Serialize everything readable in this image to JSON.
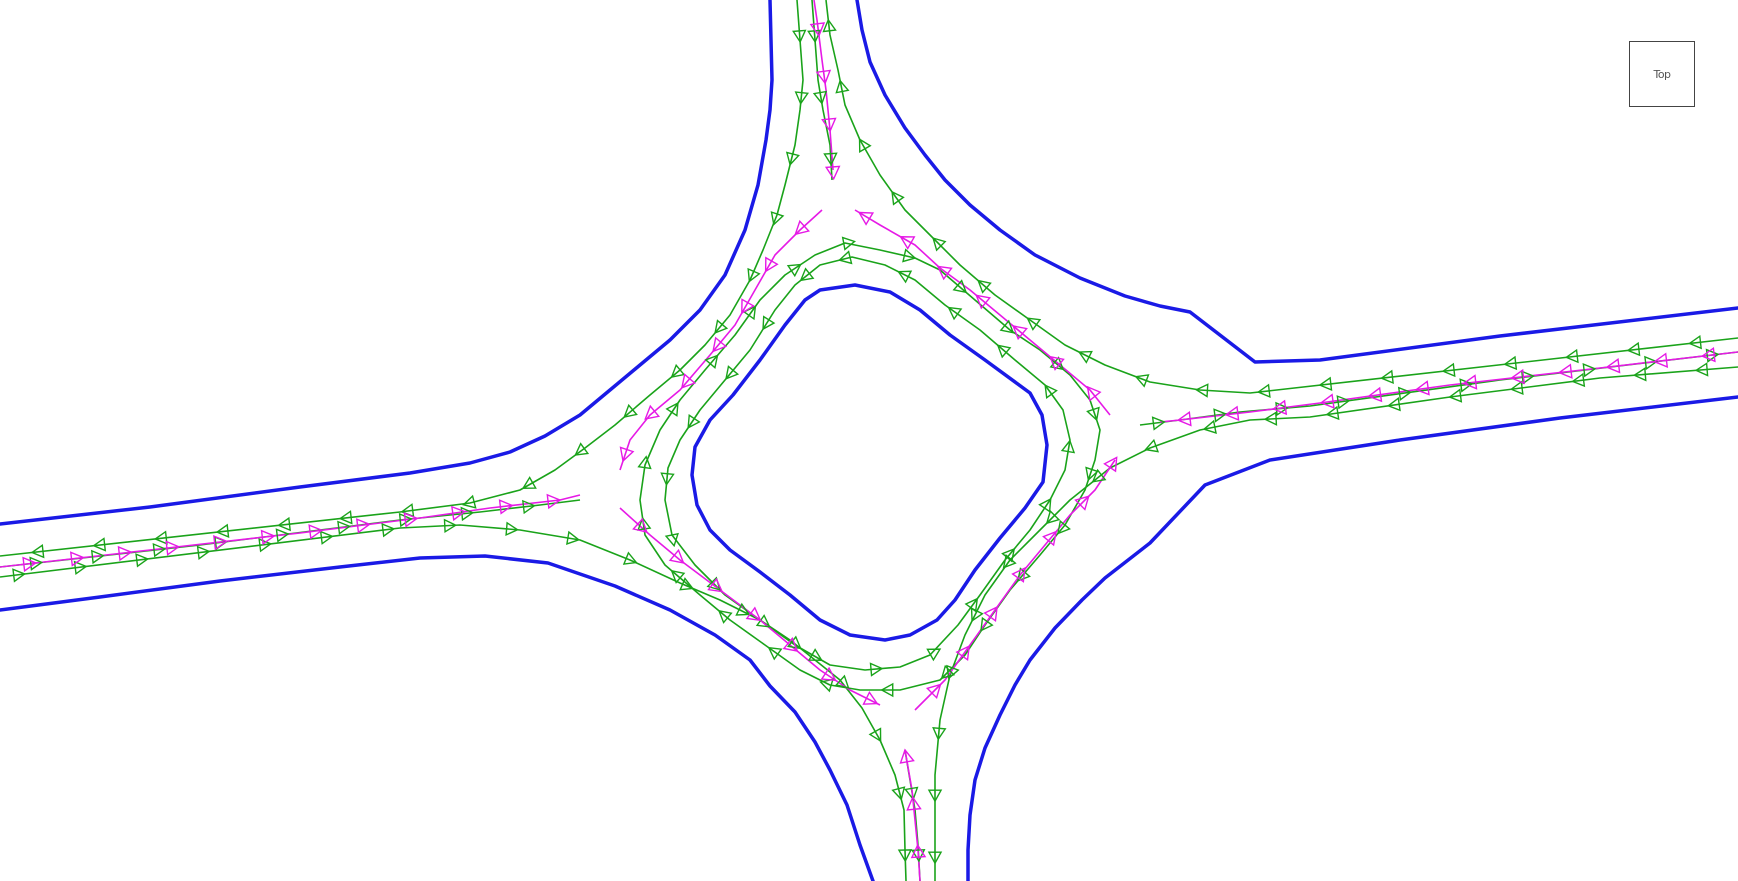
{
  "view_cube": {
    "label": "Top"
  },
  "colors": {
    "road_edge": "#1a1ae6",
    "lane_line": "#1aa31a",
    "connector_line": "#e61ae6",
    "background": "#ffffff"
  },
  "icons": {
    "direction_arrow": "triangle-arrow-icon"
  }
}
